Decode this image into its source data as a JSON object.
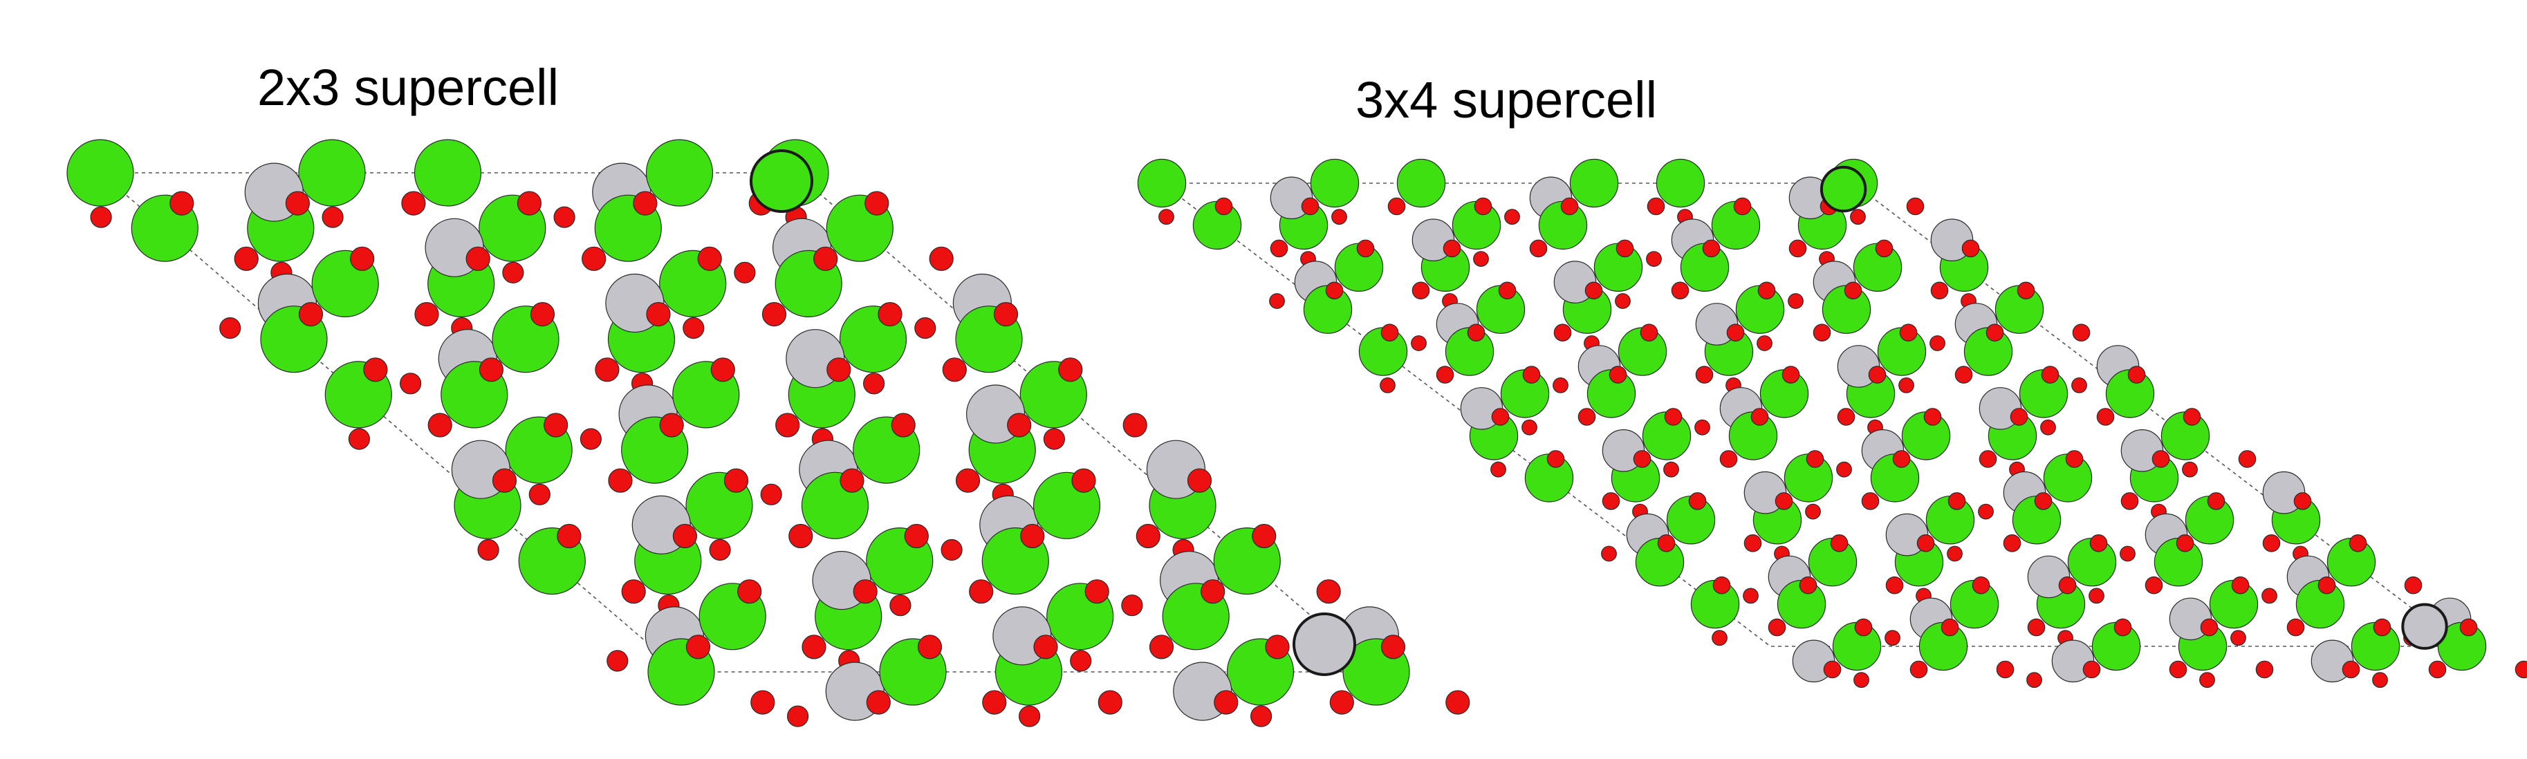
{
  "panels": [
    {
      "title": "2x3 supercell",
      "supercell": [
        2,
        3
      ]
    },
    {
      "title": "3x4 supercell",
      "supercell": [
        3,
        4
      ]
    }
  ],
  "colors": {
    "background": "#ffffff",
    "green_atom": "#3ee012",
    "gray_atom": "#c3c3c9",
    "red_atom": "#ec1010",
    "atom_outline": "#2a2a2a",
    "cell_edge": "#555555"
  }
}
